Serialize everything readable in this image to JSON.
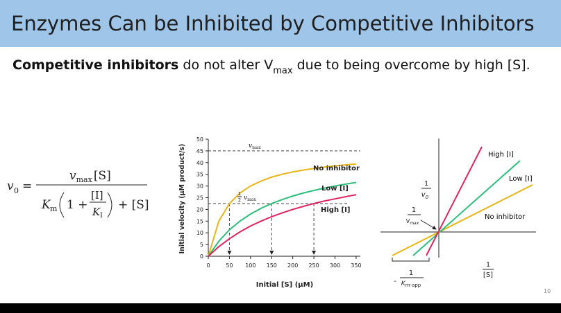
{
  "title": "Enzymes Can be Inhibited by Competitive Inhibitors",
  "subtitle": {
    "bold": "Competitive inhibitors",
    "before_sub": " do not alter V",
    "sub": "max",
    "after_sub": " due to being overcome by high [S]."
  },
  "equation": {
    "lhs": "v",
    "lhs_sub": "0",
    "eq": "=",
    "num": "v",
    "num_sub": "max",
    "num_s": "[S]",
    "km": "K",
    "km_sub": "m",
    "one_plus": "1 +",
    "i": "[I]",
    "ki": "K",
    "ki_sub": "I",
    "plus_s": "+ [S]"
  },
  "chart_data": {
    "type": "line",
    "xlabel": "Initial [S] (μM)",
    "ylabel": "Initial velocity (μM product/s)",
    "x": [
      0,
      25,
      50,
      75,
      100,
      125,
      150,
      175,
      200,
      225,
      250,
      275,
      300,
      325,
      350
    ],
    "xlim": [
      0,
      360
    ],
    "ylim": [
      0,
      50
    ],
    "xticks": [
      0,
      50,
      100,
      150,
      200,
      250,
      300,
      350
    ],
    "yticks": [
      0,
      5,
      10,
      15,
      20,
      25,
      30,
      35,
      40,
      45,
      50
    ],
    "series": [
      {
        "name": "No inhibitor",
        "color": "#e8b416",
        "values": [
          0,
          15,
          22.5,
          27,
          30,
          32.1,
          33.8,
          35,
          36,
          36.8,
          37.5,
          38.1,
          38.6,
          39,
          39.4
        ]
      },
      {
        "name": "Low [I]",
        "color": "#2bbf7a",
        "values": [
          0,
          6.4,
          11.3,
          15,
          18,
          20.5,
          22.5,
          24.2,
          25.7,
          27,
          28.1,
          29.1,
          30,
          30.8,
          31.5
        ]
      },
      {
        "name": "High [I]",
        "color": "#e0245e",
        "values": [
          0,
          4.1,
          7.5,
          10.4,
          12.9,
          15,
          16.9,
          18.5,
          20,
          21.3,
          22.5,
          23.6,
          24.5,
          25.4,
          26.3
        ]
      }
    ],
    "reference": {
      "vmax": 45,
      "half_vmax": 22.5,
      "km": [
        50,
        150,
        250
      ]
    },
    "vmax_label": {
      "text": "v",
      "sub": "max"
    },
    "half_label": {
      "num": "1",
      "den": "2",
      "text": "v",
      "sub": "max"
    }
  },
  "lineweaver_burk": {
    "series": [
      "No inhibitor",
      "Low [I]",
      "High [I]"
    ],
    "y_label": {
      "num": "1",
      "den": "v",
      "den_sub": "0"
    },
    "intercept_label": {
      "num": "1",
      "den": "V",
      "den_sub": "max"
    },
    "x_label": {
      "num": "1",
      "den": "[S]"
    },
    "x_intercept_label": {
      "sign": "-",
      "num": "1",
      "den": "K",
      "den_sub": "m-app"
    }
  },
  "page_number": "10"
}
